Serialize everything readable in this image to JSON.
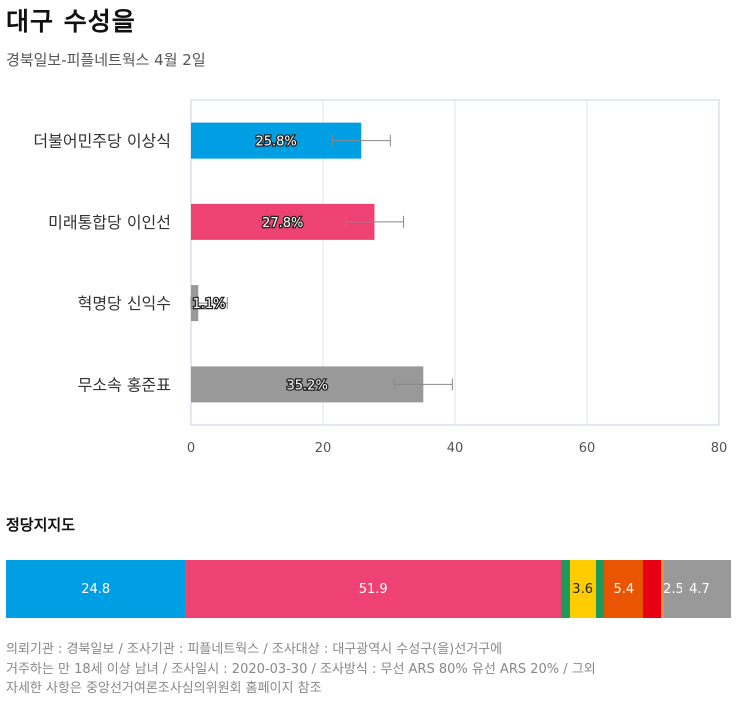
{
  "title": "대구 수성을",
  "subtitle": "경북일보-피플네트웍스 4월 2일",
  "chart_data": [
    {
      "type": "bar",
      "orientation": "horizontal",
      "title": "대구 수성을",
      "subtitle": "경북일보-피플네트웍스 4월 2일",
      "categories": [
        "더불어민주당 이상식",
        "미래통합당 이인선",
        "혁명당 신익수",
        "무소속 홍준표"
      ],
      "values": [
        25.8,
        27.8,
        1.1,
        35.2
      ],
      "value_labels": [
        "25.8%",
        "27.8%",
        "1.1%",
        "35.2%"
      ],
      "error_margin": 4.4,
      "colors": [
        "#009fe3",
        "#ee4272",
        "#999999",
        "#999999"
      ],
      "xlim": [
        0,
        80
      ],
      "xticks": [
        "0",
        "20",
        "40",
        "60",
        "80"
      ],
      "grid": true,
      "xlabel": "",
      "ylabel": ""
    },
    {
      "type": "bar",
      "orientation": "stacked-horizontal",
      "title": "정당지지도",
      "values": [
        24.8,
        51.9,
        1.2,
        3.6,
        1.2,
        5.4,
        2.4,
        0.5,
        2.5,
        4.7,
        2.0
      ],
      "labels": [
        "24.8",
        "51.9",
        "",
        "3.6",
        "",
        "5.4",
        "",
        "",
        "2.5",
        "4.7",
        ""
      ],
      "colors": [
        "#009fe3",
        "#ee4272",
        "#1e9a5a",
        "#ffcc00",
        "#1e9a5a",
        "#ea5504",
        "#e60012",
        "#f08c3c",
        "#999999",
        "#999999",
        "#999999"
      ]
    }
  ],
  "party_title": "정당지지도",
  "footer": {
    "line1": "의뢰기관 : 경북일보 / 조사기관 : 피플네트웍스 / 조사대상 : 대구광역시 수성구(을)선거구에",
    "line2": "거주하는 만 18세 이상 남녀 / 조사일시 : 2020-03-30 / 조사방식 : 무선 ARS 80% 유선 ARS 20% / 그외",
    "line3": "자세한 사항은 중앙선거여론조사심의위원회 홈페이지 참조"
  }
}
